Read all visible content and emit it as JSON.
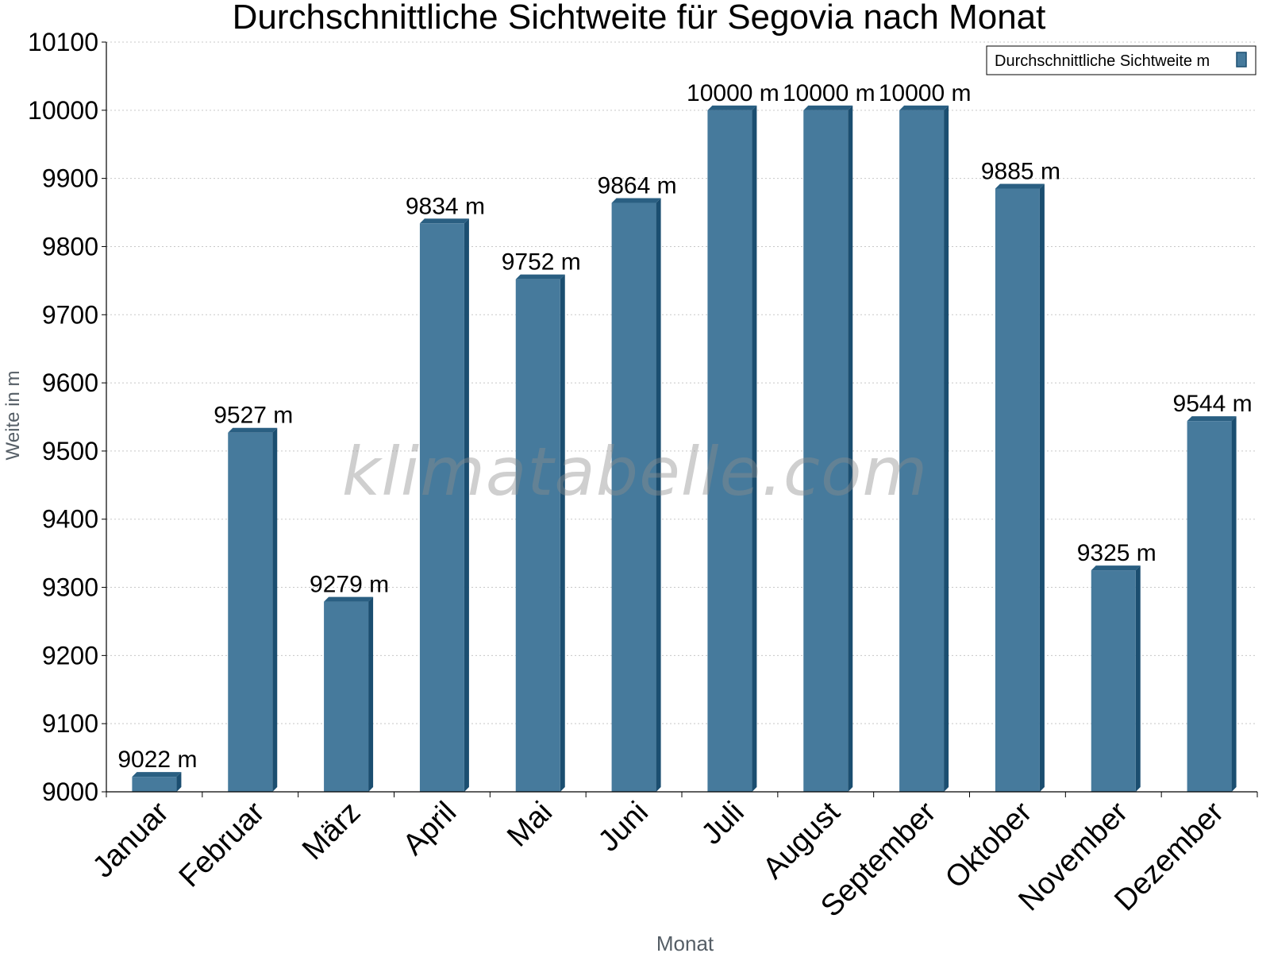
{
  "chart_data": {
    "type": "bar",
    "title": "Durchschnittliche Sichtweite für Segovia nach Monat",
    "xlabel": "Monat",
    "ylabel": "Weite in m",
    "categories": [
      "Januar",
      "Februar",
      "März",
      "April",
      "Mai",
      "Juni",
      "Juli",
      "August",
      "September",
      "Oktober",
      "November",
      "Dezember"
    ],
    "series": [
      {
        "name": "Durchschnittliche Sichtweite m",
        "values": [
          9022,
          9527,
          9279,
          9834,
          9752,
          9864,
          10000,
          10000,
          10000,
          9885,
          9325,
          9544
        ],
        "data_labels": [
          "9022 m",
          "9527 m",
          "9279 m",
          "9834 m",
          "9752 m",
          "9864 m",
          "10000 m",
          "10000 m",
          "10000 m",
          "9885 m",
          "9325 m",
          "9544 m"
        ],
        "color": "#467a9c"
      }
    ],
    "ylim": [
      9000,
      10100
    ],
    "yticks": [
      9000,
      9100,
      9200,
      9300,
      9400,
      9500,
      9600,
      9700,
      9800,
      9900,
      10000,
      10100
    ],
    "grid": true,
    "legend": "top-right"
  },
  "watermark": "klimatabelle.com",
  "colors": {
    "bar_front": "#467a9c",
    "bar_side": "#1b4e70",
    "bar_top": "#2a5f82",
    "grid": "#c8c8c8",
    "axis": "#000000",
    "axis_title": "#555e66"
  }
}
